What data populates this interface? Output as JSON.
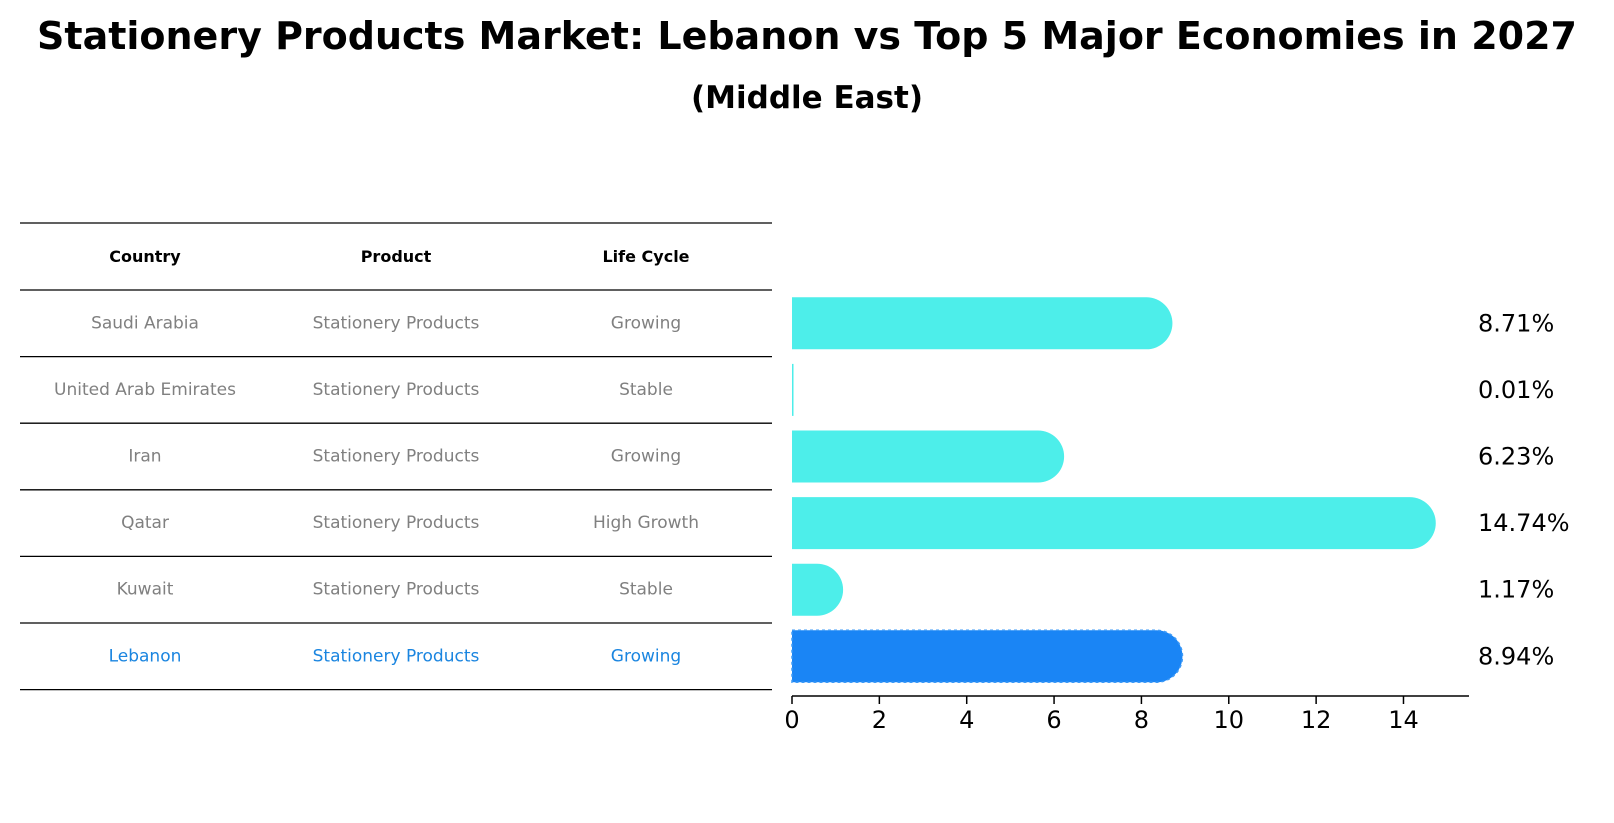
{
  "title": "Stationery Products Market: Lebanon vs Top 5 Major Economies in 2027",
  "subtitle": "(Middle East)",
  "table": {
    "headers": [
      "Country",
      "Product",
      "Life Cycle"
    ],
    "rows": [
      {
        "country": "Saudi Arabia",
        "product": "Stationery Products",
        "life_cycle": "Growing",
        "highlight": false
      },
      {
        "country": "United Arab Emirates",
        "product": "Stationery Products",
        "life_cycle": "Stable",
        "highlight": false
      },
      {
        "country": "Iran",
        "product": "Stationery Products",
        "life_cycle": "Growing",
        "highlight": false
      },
      {
        "country": "Qatar",
        "product": "Stationery Products",
        "life_cycle": "High Growth",
        "highlight": false
      },
      {
        "country": "Kuwait",
        "product": "Stationery Products",
        "life_cycle": "Stable",
        "highlight": false
      },
      {
        "country": "Lebanon",
        "product": "Stationery Products",
        "life_cycle": "Growing",
        "highlight": true
      }
    ]
  },
  "colors": {
    "default_bar": "#4deeea",
    "highlight_bar": "#1a85f5",
    "default_text": "#808080",
    "highlight_text": "#1a85e0",
    "rule": "#000000"
  },
  "chart_data": {
    "type": "bar",
    "orientation": "horizontal",
    "categories": [
      "Saudi Arabia",
      "United Arab Emirates",
      "Iran",
      "Qatar",
      "Kuwait",
      "Lebanon"
    ],
    "values": [
      8.71,
      0.01,
      6.23,
      14.74,
      1.17,
      8.94
    ],
    "value_labels": [
      "8.71%",
      "0.01%",
      "6.23%",
      "14.74%",
      "1.17%",
      "8.94%"
    ],
    "highlight_index": 5,
    "xlim": [
      0,
      15.5
    ],
    "xticks": [
      0,
      2,
      4,
      6,
      8,
      10,
      12,
      14
    ],
    "title": "Stationery Products Market: Lebanon vs Top 5 Major Economies in 2027",
    "subtitle": "(Middle East)",
    "xlabel": "",
    "ylabel": ""
  }
}
